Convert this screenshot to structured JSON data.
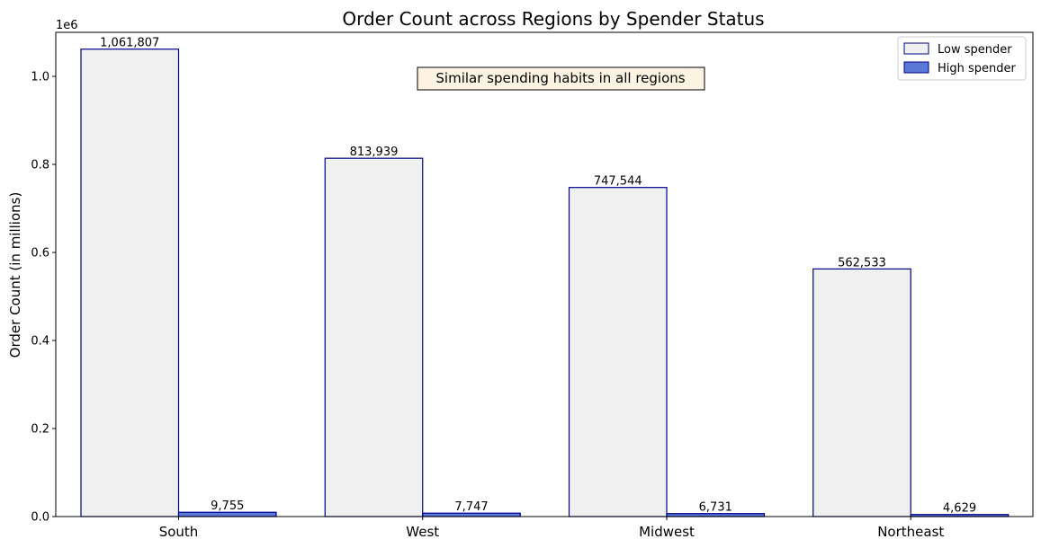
{
  "chart_data": {
    "type": "bar",
    "title": "Order Count across Regions by Spender Status",
    "xlabel": "",
    "ylabel": "Order Count (in millions)",
    "y_offset_label": "1e6",
    "ylim": [
      0,
      1.1
    ],
    "yticks": [
      0.0,
      0.2,
      0.4,
      0.6,
      0.8,
      1.0
    ],
    "ytick_labels": [
      "0.0",
      "0.2",
      "0.4",
      "0.6",
      "0.8",
      "1.0"
    ],
    "categories": [
      "South",
      "West",
      "Midwest",
      "Northeast"
    ],
    "series": [
      {
        "name": "Low spender",
        "values": [
          1061807,
          813939,
          747544,
          562533
        ],
        "labels": [
          "1,061,807",
          "813,939",
          "747,544",
          "562,533"
        ],
        "fill": "#f0f0f0",
        "edge": "#00008b"
      },
      {
        "name": "High spender",
        "values": [
          9755,
          7747,
          6731,
          4629
        ],
        "labels": [
          "9,755",
          "7,747",
          "6,731",
          "4,629"
        ],
        "fill": "#5b78d6",
        "edge": "#00008b"
      }
    ],
    "annotation": {
      "text": "Similar spending habits in all regions",
      "background": "#fdf3e2"
    },
    "legend_position": "top-right",
    "grid": false
  }
}
